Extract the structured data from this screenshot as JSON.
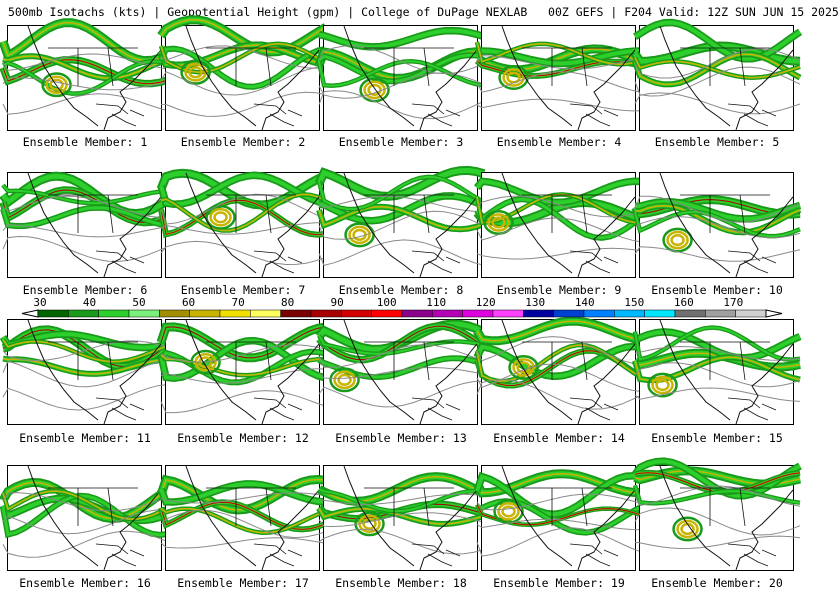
{
  "header": {
    "title": "500mb Isotachs (kts) | Geopotential Height (gpm) | College of DuPage NEXLAB   00Z GEFS | F204 Valid: 12Z SUN JUN 15 2025"
  },
  "colors": {
    "panel_border": "#000000",
    "map_lines": "#111111",
    "height_contour": "#8a8a8a",
    "isotach_scale": [
      "#006400",
      "#1a9a1a",
      "#2ccf2c",
      "#7cf07c",
      "#a08f00",
      "#c8b400",
      "#f0e000",
      "#ffff60",
      "#7a0000",
      "#a80000",
      "#d20000",
      "#ff0000",
      "#8a008a",
      "#b400b4",
      "#de00de",
      "#ff40ff",
      "#0000a0",
      "#0040d0",
      "#0080ff",
      "#00b8ff",
      "#00e6ff",
      "#707070",
      "#a0a0a0",
      "#d0d0d0"
    ]
  },
  "colorbar": {
    "labels": [
      "30",
      "40",
      "50",
      "60",
      "70",
      "80",
      "90",
      "100",
      "110",
      "120",
      "130",
      "140",
      "150",
      "160",
      "170"
    ]
  },
  "members": [
    {
      "label": "Ensemble Member: 1"
    },
    {
      "label": "Ensemble Member: 2"
    },
    {
      "label": "Ensemble Member: 3"
    },
    {
      "label": "Ensemble Member: 4"
    },
    {
      "label": "Ensemble Member: 5"
    },
    {
      "label": "Ensemble Member: 6"
    },
    {
      "label": "Ensemble Member: 7"
    },
    {
      "label": "Ensemble Member: 8"
    },
    {
      "label": "Ensemble Member: 9"
    },
    {
      "label": "Ensemble Member: 10"
    },
    {
      "label": "Ensemble Member: 11"
    },
    {
      "label": "Ensemble Member: 12"
    },
    {
      "label": "Ensemble Member: 13"
    },
    {
      "label": "Ensemble Member: 14"
    },
    {
      "label": "Ensemble Member: 15"
    },
    {
      "label": "Ensemble Member: 16"
    },
    {
      "label": "Ensemble Member: 17"
    },
    {
      "label": "Ensemble Member: 18"
    },
    {
      "label": "Ensemble Member: 19"
    },
    {
      "label": "Ensemble Member: 20"
    }
  ]
}
